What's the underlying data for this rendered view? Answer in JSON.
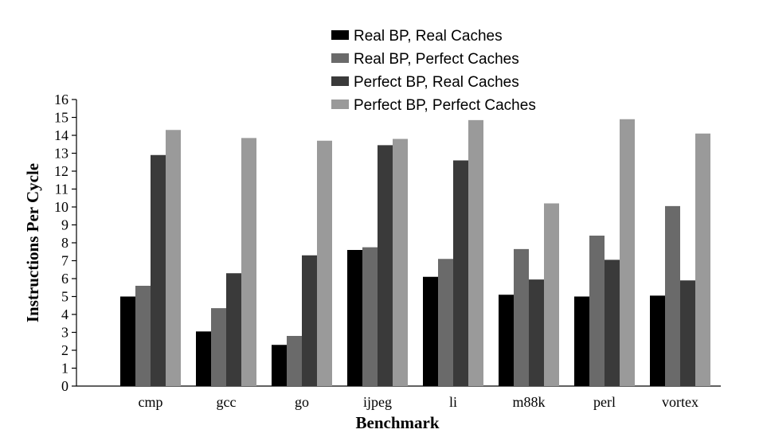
{
  "chart_data": {
    "type": "bar",
    "title": "",
    "xlabel": "Benchmark",
    "ylabel": "Instructions Per Cycle",
    "ylim": [
      0,
      16
    ],
    "yticks": [
      0,
      1,
      2,
      3,
      4,
      5,
      6,
      7,
      8,
      9,
      10,
      11,
      12,
      13,
      14,
      15,
      16
    ],
    "grid": false,
    "legend_position": "top",
    "categories": [
      "cmp",
      "gcc",
      "go",
      "ijpeg",
      "li",
      "m88k",
      "perl",
      "vortex"
    ],
    "series": [
      {
        "name": "Real BP, Real Caches",
        "color": "#000000",
        "values": [
          5.0,
          3.05,
          2.3,
          7.6,
          6.1,
          5.1,
          5.0,
          5.05
        ]
      },
      {
        "name": "Real BP, Perfect Caches",
        "color": "#6a6a6a",
        "values": [
          5.6,
          4.35,
          2.8,
          7.75,
          7.1,
          7.65,
          8.4,
          10.05
        ]
      },
      {
        "name": "Perfect BP, Real Caches",
        "color": "#3a3a3a",
        "values": [
          12.9,
          6.3,
          7.3,
          13.45,
          12.6,
          5.95,
          7.05,
          5.9
        ]
      },
      {
        "name": "Perfect BP, Perfect Caches",
        "color": "#9a9a9a",
        "values": [
          14.3,
          13.85,
          13.7,
          13.8,
          14.85,
          10.2,
          14.9,
          14.1
        ]
      }
    ]
  }
}
